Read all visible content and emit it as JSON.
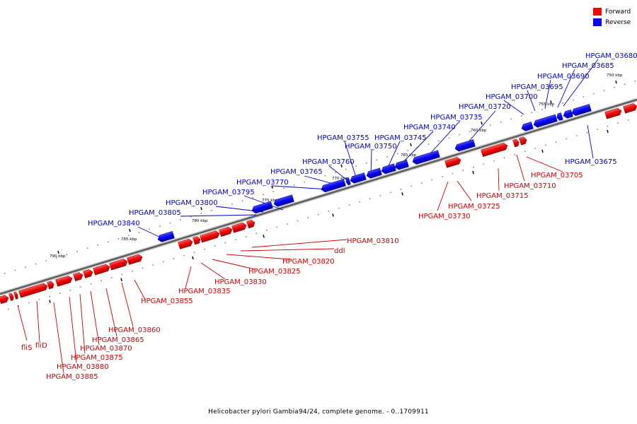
{
  "legend": {
    "forward_label": "Forward",
    "forward_color": "#ff0000",
    "reverse_label": "Reverse",
    "reverse_color": "#0000ff"
  },
  "caption": "Helicobacter pylori Gambia94/24, complete genome. - 0..1709911",
  "scale_labels": [
    "750 kbp",
    "755 kbp",
    "760 kbp",
    "765 kbp",
    "770 kbp",
    "775 kbp",
    "780 kbp",
    "785 kbp",
    "790 kbp"
  ],
  "reverse_gene_labels": [
    "HPGAM_03680",
    "HPGAM_03685",
    "HPGAM_03690",
    "HPGAM_03695",
    "HPGAM_03700",
    "HPGAM_03720",
    "HPGAM_03735",
    "HPGAM_03740",
    "HPGAM_03745",
    "HPGAM_03750",
    "HPGAM_03755",
    "HPGAM_03760",
    "HPGAM_03765",
    "HPGAM_03770",
    "HPGAM_03795",
    "HPGAM_03800",
    "HPGAM_03805",
    "HPGAM_03840",
    "HPGAM_03675"
  ],
  "forward_gene_labels": [
    "HPGAM_03705",
    "HPGAM_03710",
    "HPGAM_03715",
    "HPGAM_03725",
    "HPGAM_03730",
    "HPGAM_03810",
    "ddl",
    "HPGAM_03820",
    "HPGAM_03825",
    "HPGAM_03830",
    "HPGAM_03835",
    "HPGAM_03855",
    "HPGAM_03860",
    "HPGAM_03865",
    "HPGAM_03870",
    "HPGAM_03875",
    "HPGAM_03880",
    "HPGAM_03885",
    "fliS",
    "fliD"
  ]
}
